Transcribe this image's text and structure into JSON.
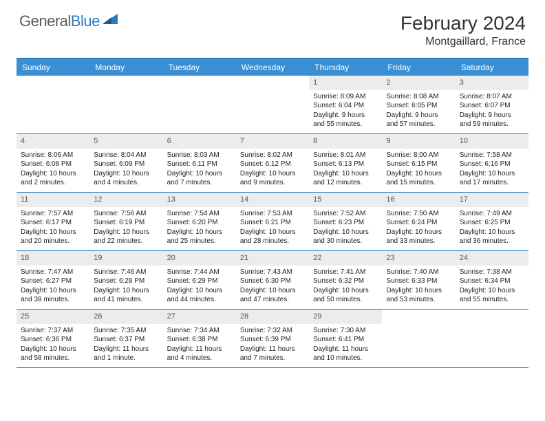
{
  "logo": {
    "text1": "General",
    "text2": "Blue"
  },
  "title": "February 2024",
  "location": "Montgaillard, France",
  "colors": {
    "header_bg": "#3a8fd4",
    "border": "#2a7abf",
    "daynum_bg": "#ececec",
    "text": "#333333"
  },
  "weekdays": [
    "Sunday",
    "Monday",
    "Tuesday",
    "Wednesday",
    "Thursday",
    "Friday",
    "Saturday"
  ],
  "weeks": [
    [
      null,
      null,
      null,
      null,
      {
        "n": "1",
        "sr": "Sunrise: 8:09 AM",
        "ss": "Sunset: 6:04 PM",
        "dl": "Daylight: 9 hours and 55 minutes."
      },
      {
        "n": "2",
        "sr": "Sunrise: 8:08 AM",
        "ss": "Sunset: 6:05 PM",
        "dl": "Daylight: 9 hours and 57 minutes."
      },
      {
        "n": "3",
        "sr": "Sunrise: 8:07 AM",
        "ss": "Sunset: 6:07 PM",
        "dl": "Daylight: 9 hours and 59 minutes."
      }
    ],
    [
      {
        "n": "4",
        "sr": "Sunrise: 8:06 AM",
        "ss": "Sunset: 6:08 PM",
        "dl": "Daylight: 10 hours and 2 minutes."
      },
      {
        "n": "5",
        "sr": "Sunrise: 8:04 AM",
        "ss": "Sunset: 6:09 PM",
        "dl": "Daylight: 10 hours and 4 minutes."
      },
      {
        "n": "6",
        "sr": "Sunrise: 8:03 AM",
        "ss": "Sunset: 6:11 PM",
        "dl": "Daylight: 10 hours and 7 minutes."
      },
      {
        "n": "7",
        "sr": "Sunrise: 8:02 AM",
        "ss": "Sunset: 6:12 PM",
        "dl": "Daylight: 10 hours and 9 minutes."
      },
      {
        "n": "8",
        "sr": "Sunrise: 8:01 AM",
        "ss": "Sunset: 6:13 PM",
        "dl": "Daylight: 10 hours and 12 minutes."
      },
      {
        "n": "9",
        "sr": "Sunrise: 8:00 AM",
        "ss": "Sunset: 6:15 PM",
        "dl": "Daylight: 10 hours and 15 minutes."
      },
      {
        "n": "10",
        "sr": "Sunrise: 7:58 AM",
        "ss": "Sunset: 6:16 PM",
        "dl": "Daylight: 10 hours and 17 minutes."
      }
    ],
    [
      {
        "n": "11",
        "sr": "Sunrise: 7:57 AM",
        "ss": "Sunset: 6:17 PM",
        "dl": "Daylight: 10 hours and 20 minutes."
      },
      {
        "n": "12",
        "sr": "Sunrise: 7:56 AM",
        "ss": "Sunset: 6:19 PM",
        "dl": "Daylight: 10 hours and 22 minutes."
      },
      {
        "n": "13",
        "sr": "Sunrise: 7:54 AM",
        "ss": "Sunset: 6:20 PM",
        "dl": "Daylight: 10 hours and 25 minutes."
      },
      {
        "n": "14",
        "sr": "Sunrise: 7:53 AM",
        "ss": "Sunset: 6:21 PM",
        "dl": "Daylight: 10 hours and 28 minutes."
      },
      {
        "n": "15",
        "sr": "Sunrise: 7:52 AM",
        "ss": "Sunset: 6:23 PM",
        "dl": "Daylight: 10 hours and 30 minutes."
      },
      {
        "n": "16",
        "sr": "Sunrise: 7:50 AM",
        "ss": "Sunset: 6:24 PM",
        "dl": "Daylight: 10 hours and 33 minutes."
      },
      {
        "n": "17",
        "sr": "Sunrise: 7:49 AM",
        "ss": "Sunset: 6:25 PM",
        "dl": "Daylight: 10 hours and 36 minutes."
      }
    ],
    [
      {
        "n": "18",
        "sr": "Sunrise: 7:47 AM",
        "ss": "Sunset: 6:27 PM",
        "dl": "Daylight: 10 hours and 39 minutes."
      },
      {
        "n": "19",
        "sr": "Sunrise: 7:46 AM",
        "ss": "Sunset: 6:28 PM",
        "dl": "Daylight: 10 hours and 41 minutes."
      },
      {
        "n": "20",
        "sr": "Sunrise: 7:44 AM",
        "ss": "Sunset: 6:29 PM",
        "dl": "Daylight: 10 hours and 44 minutes."
      },
      {
        "n": "21",
        "sr": "Sunrise: 7:43 AM",
        "ss": "Sunset: 6:30 PM",
        "dl": "Daylight: 10 hours and 47 minutes."
      },
      {
        "n": "22",
        "sr": "Sunrise: 7:41 AM",
        "ss": "Sunset: 6:32 PM",
        "dl": "Daylight: 10 hours and 50 minutes."
      },
      {
        "n": "23",
        "sr": "Sunrise: 7:40 AM",
        "ss": "Sunset: 6:33 PM",
        "dl": "Daylight: 10 hours and 53 minutes."
      },
      {
        "n": "24",
        "sr": "Sunrise: 7:38 AM",
        "ss": "Sunset: 6:34 PM",
        "dl": "Daylight: 10 hours and 55 minutes."
      }
    ],
    [
      {
        "n": "25",
        "sr": "Sunrise: 7:37 AM",
        "ss": "Sunset: 6:36 PM",
        "dl": "Daylight: 10 hours and 58 minutes."
      },
      {
        "n": "26",
        "sr": "Sunrise: 7:35 AM",
        "ss": "Sunset: 6:37 PM",
        "dl": "Daylight: 11 hours and 1 minute."
      },
      {
        "n": "27",
        "sr": "Sunrise: 7:34 AM",
        "ss": "Sunset: 6:38 PM",
        "dl": "Daylight: 11 hours and 4 minutes."
      },
      {
        "n": "28",
        "sr": "Sunrise: 7:32 AM",
        "ss": "Sunset: 6:39 PM",
        "dl": "Daylight: 11 hours and 7 minutes."
      },
      {
        "n": "29",
        "sr": "Sunrise: 7:30 AM",
        "ss": "Sunset: 6:41 PM",
        "dl": "Daylight: 11 hours and 10 minutes."
      },
      null,
      null
    ]
  ]
}
